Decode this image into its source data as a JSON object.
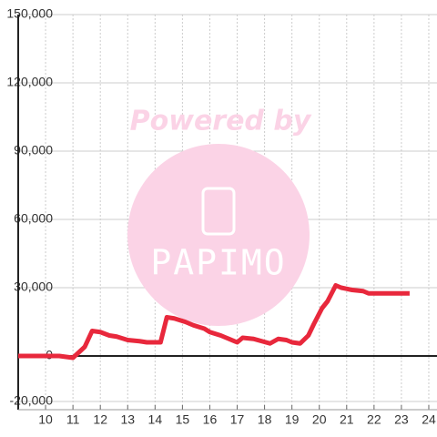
{
  "chart_data": {
    "type": "line",
    "watermark": {
      "top": "Powered by",
      "brand": "PAPIMO"
    },
    "x": [
      9,
      10.5,
      11,
      11.43,
      11.7,
      12,
      12.33,
      12.6,
      13,
      13.43,
      13.7,
      14.2,
      14.43,
      14.7,
      15.1,
      15.4,
      15.8,
      16,
      16.4,
      16.6,
      17,
      17.2,
      17.6,
      17.9,
      18.2,
      18.5,
      18.8,
      19,
      19.3,
      19.6,
      19.8,
      20.1,
      20.3,
      20.6,
      20.8,
      21.2,
      21.6,
      21.8,
      22.2,
      23.3
    ],
    "values": [
      0,
      0,
      -800,
      4000,
      11000,
      10500,
      9000,
      8500,
      7000,
      6500,
      6000,
      6000,
      17000,
      16500,
      15000,
      13500,
      12000,
      10500,
      9000,
      8000,
      6000,
      8000,
      7500,
      6500,
      5500,
      7500,
      7000,
      6000,
      5500,
      9000,
      14000,
      21000,
      24000,
      31000,
      30000,
      29000,
      28500,
      27500,
      27500,
      27500
    ],
    "color": "#e8283c",
    "xlim": [
      9,
      24.3
    ],
    "xticks": [
      10,
      11,
      12,
      13,
      14,
      15,
      16,
      17,
      18,
      19,
      20,
      21,
      22,
      23,
      24
    ],
    "ylim": [
      -20000,
      150000
    ],
    "yticks": [
      {
        "value": -20000,
        "label": "-20,000"
      },
      0,
      {
        "value": 30000,
        "label": "30,000"
      },
      {
        "value": 60000,
        "label": "60,000"
      },
      {
        "value": 90000,
        "label": "90,000"
      },
      {
        "value": 120000,
        "label": "120,000"
      },
      {
        "value": 150000,
        "label": "150,000"
      }
    ],
    "grid": true
  }
}
